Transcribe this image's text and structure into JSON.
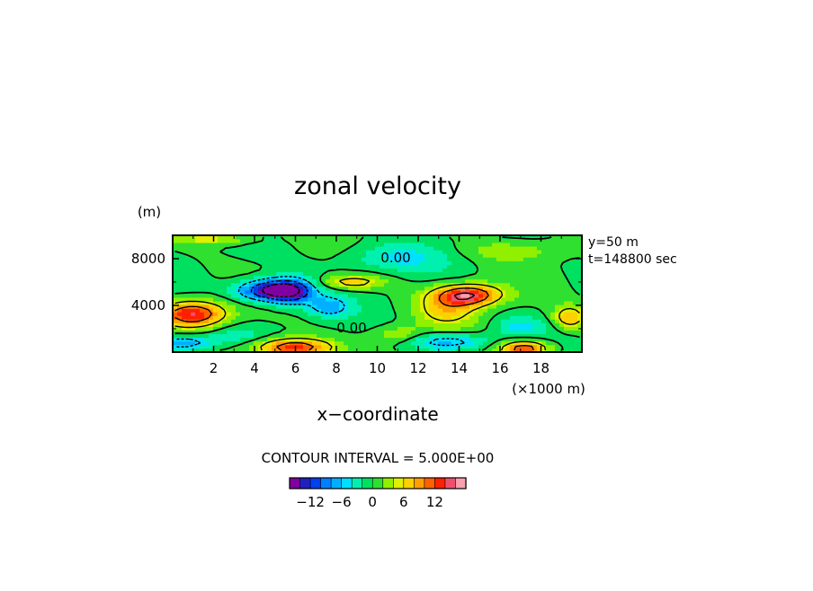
{
  "chart_data": {
    "type": "heatmap",
    "title": "zonal velocity",
    "xlabel": "x−coordinate",
    "x_unit": "(×1000 m)",
    "y_unit": "(m)",
    "xlim": [
      0,
      20
    ],
    "ylim": [
      0,
      10000
    ],
    "x_ticks": [
      "2",
      "4",
      "6",
      "8",
      "10",
      "12",
      "14",
      "16",
      "18"
    ],
    "y_ticks": [
      "4000",
      "8000"
    ],
    "annotations": [
      "y=50 m",
      "t=148800 sec"
    ],
    "contour_labels": [
      "0.00",
      "0.00"
    ],
    "contour_interval_text": "CONTOUR INTERVAL = 5.000E+00",
    "colorbar": {
      "ticks": [
        "−12",
        "−6",
        "0",
        "6",
        "12"
      ],
      "tick_values": [
        -12,
        -6,
        0,
        6,
        12
      ],
      "levels": [
        -16,
        -14,
        -12,
        -10,
        -8,
        -6,
        -4,
        -2,
        0,
        2,
        4,
        6,
        8,
        10,
        12,
        14,
        16
      ],
      "colors": [
        "#8000a0",
        "#2020c0",
        "#0040f0",
        "#0080ff",
        "#00b0ff",
        "#00e0ff",
        "#00f0b0",
        "#00e060",
        "#30e030",
        "#90f000",
        "#e0f000",
        "#ffd000",
        "#ffa000",
        "#ff6000",
        "#ff2000",
        "#f05070",
        "#f8a0b0"
      ]
    },
    "features": [
      {
        "x": 4.8,
        "y": 5300,
        "value": -16,
        "sx": 1.6,
        "sy": 900
      },
      {
        "x": 5.8,
        "y": 5200,
        "value": -9,
        "sx": 1.1,
        "sy": 1200
      },
      {
        "x": 7.6,
        "y": 3900,
        "value": -7,
        "sx": 1.0,
        "sy": 900
      },
      {
        "x": 1.0,
        "y": 3300,
        "value": 14,
        "sx": 1.6,
        "sy": 1100
      },
      {
        "x": 14.4,
        "y": 4900,
        "value": 15,
        "sx": 1.6,
        "sy": 900
      },
      {
        "x": 13.4,
        "y": 3600,
        "value": 6,
        "sx": 1.5,
        "sy": 1300
      },
      {
        "x": 5.9,
        "y": 400,
        "value": 14,
        "sx": 1.8,
        "sy": 800
      },
      {
        "x": 17.2,
        "y": 300,
        "value": 13,
        "sx": 1.2,
        "sy": 700
      },
      {
        "x": 8.8,
        "y": 6000,
        "value": 7,
        "sx": 1.5,
        "sy": 600
      },
      {
        "x": 0.5,
        "y": 800,
        "value": -8,
        "sx": 1.6,
        "sy": 700
      },
      {
        "x": 13.5,
        "y": 900,
        "value": -7,
        "sx": 2.0,
        "sy": 700
      },
      {
        "x": 10.8,
        "y": 8100,
        "value": -4,
        "sx": 2.6,
        "sy": 1200
      },
      {
        "x": 19.4,
        "y": 3000,
        "value": 8,
        "sx": 0.8,
        "sy": 1000
      },
      {
        "x": 17.0,
        "y": 2200,
        "value": -4,
        "sx": 1.2,
        "sy": 800
      },
      {
        "x": 11.0,
        "y": 1500,
        "value": 4,
        "sx": 1.2,
        "sy": 800
      },
      {
        "x": 2.0,
        "y": 9700,
        "value": 5,
        "sx": 2.0,
        "sy": 500
      },
      {
        "x": 16.5,
        "y": 8700,
        "value": 3,
        "sx": 2.5,
        "sy": 800
      },
      {
        "x": 3.0,
        "y": 1500,
        "value": -3,
        "sx": 1.5,
        "sy": 800
      }
    ]
  }
}
